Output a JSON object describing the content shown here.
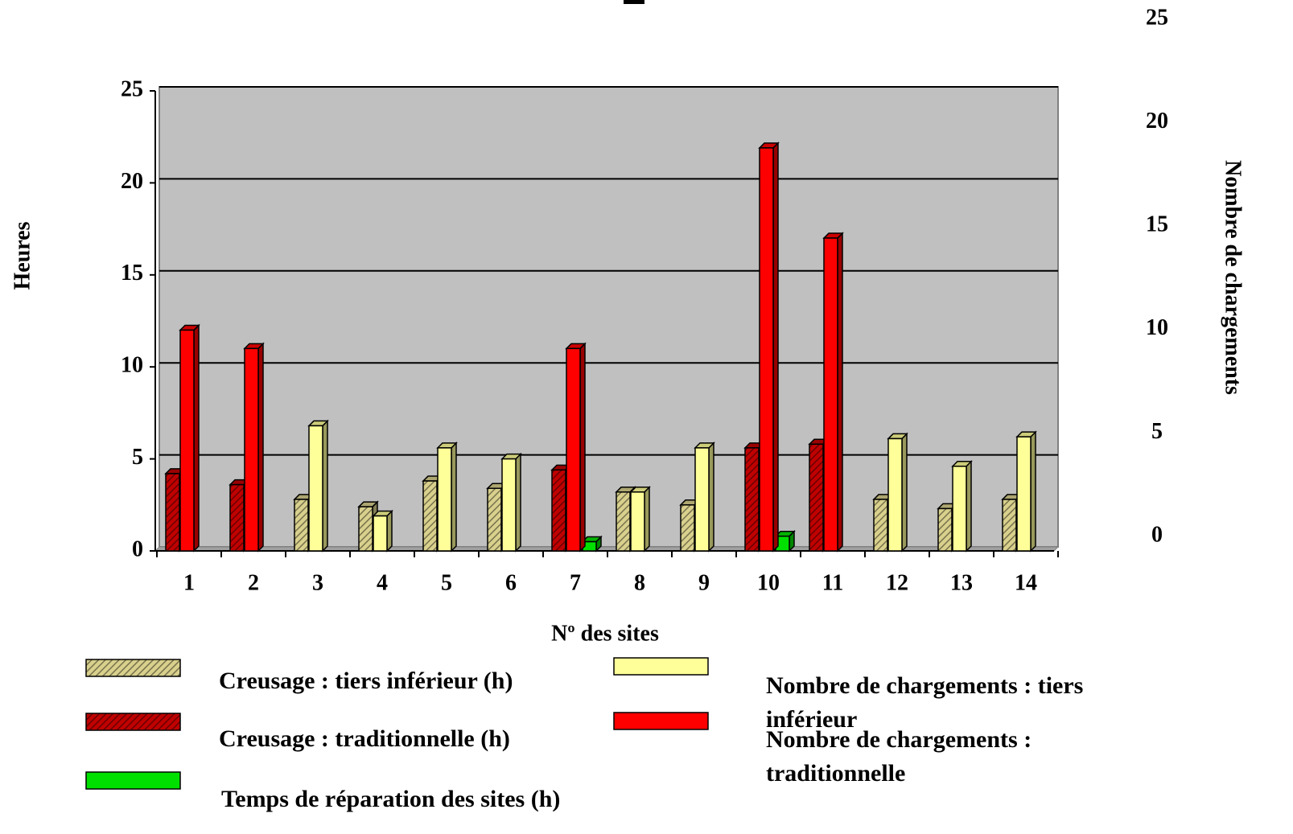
{
  "chart_data": {
    "type": "bar",
    "y_label": "Heures",
    "y2_label": "Nombre de chargements",
    "x_label": "Nº des sites",
    "categories": [
      "1",
      "2",
      "3",
      "4",
      "5",
      "6",
      "7",
      "8",
      "9",
      "10",
      "11",
      "12",
      "13",
      "14"
    ],
    "series": [
      {
        "name": "Creusage : tiers inférieur (h)",
        "color": "#d8d08c",
        "hatch": true,
        "values": [
          null,
          null,
          2.8,
          2.4,
          3.8,
          3.4,
          null,
          3.2,
          2.5,
          null,
          null,
          2.8,
          2.3,
          2.8
        ]
      },
      {
        "name": "Creusage : traditionnelle (h)",
        "color": "#c00000",
        "hatch": true,
        "values": [
          4.2,
          3.6,
          null,
          null,
          null,
          null,
          4.4,
          null,
          null,
          5.6,
          5.8,
          null,
          null,
          null
        ]
      },
      {
        "name": "Temps de réparation des sites (h)",
        "color": "#00e000",
        "values": [
          null,
          null,
          null,
          null,
          null,
          null,
          0.5,
          null,
          null,
          0.8,
          null,
          null,
          null,
          null
        ]
      },
      {
        "name": "Nombre de chargements : tiers inférieur",
        "color": "#ffff99",
        "values": [
          null,
          null,
          6.8,
          1.9,
          5.6,
          5.0,
          null,
          3.2,
          5.6,
          null,
          null,
          6.1,
          4.6,
          6.2
        ]
      },
      {
        "name": "Nombre de chargements : traditionnelle",
        "color": "#ff0000",
        "values": [
          12.0,
          11.0,
          null,
          null,
          null,
          null,
          11.0,
          null,
          null,
          21.9,
          17.0,
          null,
          null,
          null
        ]
      }
    ],
    "ylim": [
      0,
      25
    ],
    "yticks": [
      0,
      5,
      10,
      15,
      20,
      25
    ],
    "y2lim": [
      0,
      25
    ],
    "y2ticks": [
      0,
      5,
      10,
      15,
      20,
      25
    ],
    "grid": true
  }
}
